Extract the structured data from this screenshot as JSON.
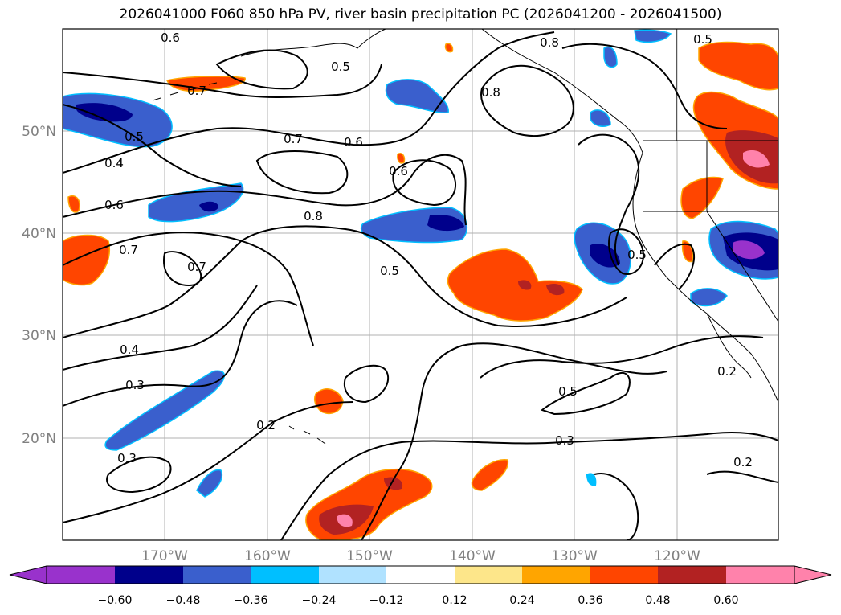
{
  "title": "2026041000 F060 850 hPa PV, river basin precipitation PC (2026041200 - 2026041500)",
  "map": {
    "lat_labels": [
      "50°N",
      "40°N",
      "30°N",
      "20°N"
    ],
    "lon_labels": [
      "170°W",
      "160°W",
      "150°W",
      "140°W",
      "130°W",
      "120°W"
    ],
    "axis_label_color": "#808080",
    "grid_color": "#b0b0b0"
  },
  "contour_labels": [
    "0.6",
    "0.8",
    "0.5",
    "0.5",
    "0.7",
    "0.8",
    "0.5",
    "0.4",
    "0.7",
    "0.6",
    "0.6",
    "0.6",
    "0.8",
    "0.7",
    "0.7",
    "0.5",
    "0.5",
    "0.4",
    "0.3",
    "0.2",
    "0.5",
    "0.3",
    "0.3",
    "0.2",
    "0.2"
  ],
  "colorbar": {
    "ticks": [
      "−0.60",
      "−0.48",
      "−0.36",
      "−0.24",
      "−0.12",
      "0.12",
      "0.24",
      "0.36",
      "0.48",
      "0.60"
    ],
    "colors": [
      "#9932cc",
      "#00008b",
      "#3a5fcd",
      "#00bfff",
      "#b0e2ff",
      "#ffffff",
      "#fde68a",
      "#ffa500",
      "#ff4500",
      "#b22222",
      "#ff82ab",
      "#ff82ab"
    ],
    "min_color": "#9932cc",
    "max_color": "#ff82ab"
  }
}
